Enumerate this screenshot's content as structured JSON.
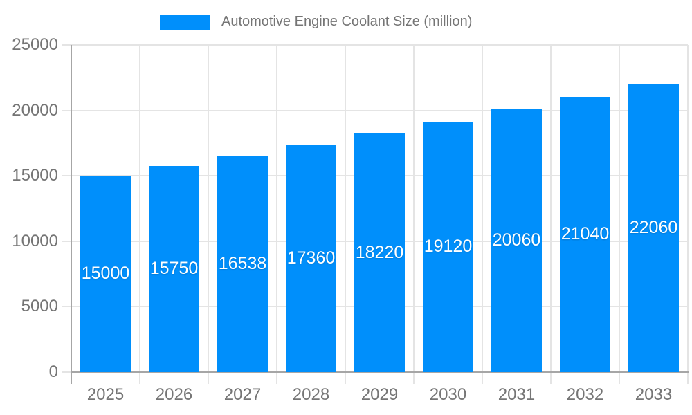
{
  "legend": {
    "label": "Automotive Engine Coolant Size (million)"
  },
  "colors": {
    "bar": "#008FFB",
    "grid": "#e4e4e4",
    "axis": "#a6a6a6",
    "tick_text": "#757575",
    "bar_label_text": "#ffffff",
    "background": "#ffffff"
  },
  "chart_data": {
    "type": "bar",
    "title": "Automotive Engine Coolant Size (million)",
    "categories": [
      "2025",
      "2026",
      "2027",
      "2028",
      "2029",
      "2030",
      "2031",
      "2032",
      "2033"
    ],
    "values": [
      15000,
      15750,
      16538,
      17360,
      18220,
      19120,
      20060,
      21040,
      22060
    ],
    "series": [
      {
        "name": "Automotive Engine Coolant Size (million)",
        "values": [
          15000,
          15750,
          16538,
          17360,
          18220,
          19120,
          20060,
          21040,
          22060
        ]
      }
    ],
    "xlabel": "",
    "ylabel": "",
    "ylim": [
      0,
      25000
    ],
    "yticks": [
      0,
      5000,
      10000,
      15000,
      20000,
      25000
    ],
    "grid": true,
    "legend_position": "top",
    "data_labels": "inside-center, white"
  }
}
